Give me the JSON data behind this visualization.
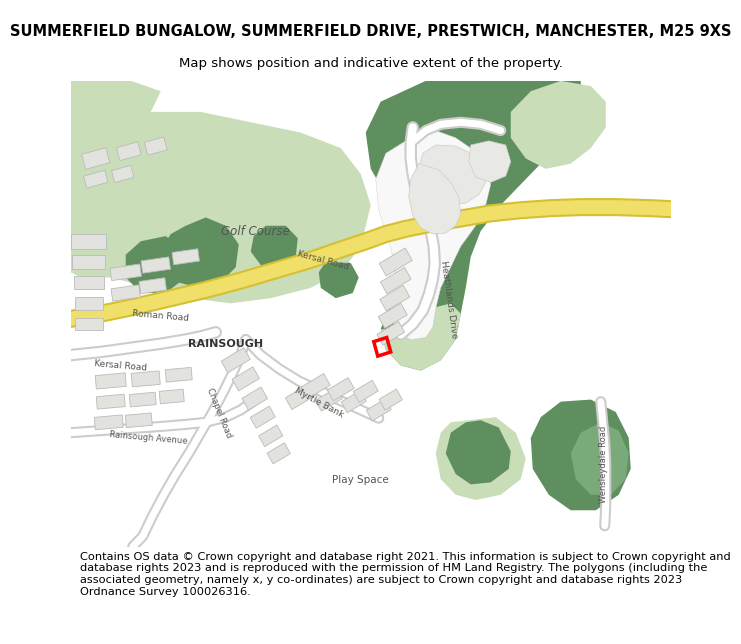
{
  "title_line1": "SUMMERFIELD BUNGALOW, SUMMERFIELD DRIVE, PRESTWICH, MANCHESTER, M25 9XS",
  "title_line2": "Map shows position and indicative extent of the property.",
  "footer_text": "Contains OS data © Crown copyright and database right 2021. This information is subject to Crown copyright and database rights 2023 and is reproduced with the permission of HM Land Registry. The polygons (including the associated geometry, namely x, y co-ordinates) are subject to Crown copyright and database rights 2023 Ordnance Survey 100026316.",
  "green_light": "#c8ddb8",
  "green_dark": "#5f8f5f",
  "green_mid": "#7aaa7a",
  "map_bg": "#f5f5f0",
  "road_white": "#ffffff",
  "road_yellow": "#f0e06a",
  "road_yellow_border": "#d4c030",
  "road_outline": "#cccccc",
  "building_fill": "#e0e0dc",
  "building_edge": "#bbbbbb",
  "title_fontsize": 10.5,
  "subtitle_fontsize": 9.5,
  "footer_fontsize": 8.2
}
